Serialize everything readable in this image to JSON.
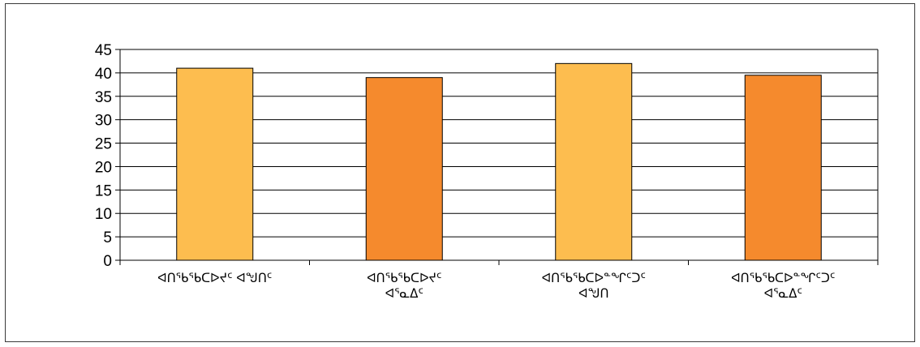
{
  "chart_data": {
    "type": "bar",
    "title": "",
    "xlabel": "",
    "ylabel": "",
    "ylim": [
      0,
      45
    ],
    "yticks": [
      0,
      5,
      10,
      15,
      20,
      25,
      30,
      35,
      40,
      45
    ],
    "grid": true,
    "legend": "none",
    "categories": [
      [
        "ᐊᑎᖃᖃᑕᐅᔪᑦ ᐊᖑᑎᑦ"
      ],
      [
        "ᐊᑎᖃᖃᑕᐅᔪᑦ",
        "ᐊᕐᓇᐃᑦ"
      ],
      [
        "ᐊᑎᖃᖃᑕᐅᓐᖏᑦᑐᑦ",
        "ᐊᖑᑎ"
      ],
      [
        "ᐊᑎᖃᖃᑕᐅᓐᖏᑦᑐᑦ",
        "ᐊᕐᓇᐃᑦ"
      ]
    ],
    "values": [
      41,
      39,
      42,
      39.5
    ],
    "colors": [
      "#FDBD4F",
      "#F58A2D",
      "#FDBD4F",
      "#F58A2D"
    ]
  }
}
